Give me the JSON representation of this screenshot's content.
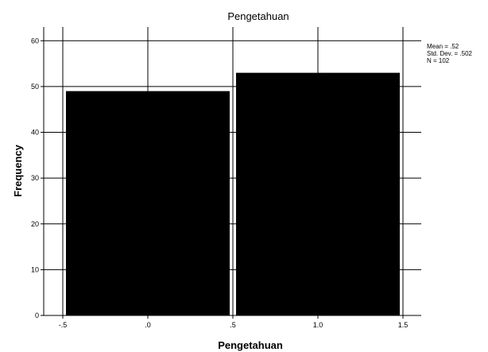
{
  "chart_data": {
    "type": "bar",
    "title": "Pengetahuan",
    "xlabel": "Pengetahuan",
    "ylabel": "Frequency",
    "bins": [
      {
        "from": -0.5,
        "to": 0.5,
        "value": 49
      },
      {
        "from": 0.5,
        "to": 1.5,
        "value": 53
      }
    ],
    "x_ticks": [
      -0.5,
      0.0,
      0.5,
      1.0,
      1.5
    ],
    "x_tick_labels": [
      "-.5",
      ".0",
      ".5",
      "1.0",
      "1.5"
    ],
    "y_ticks": [
      0,
      10,
      20,
      30,
      40,
      50,
      60
    ],
    "y_tick_labels": [
      "0",
      "10",
      "20",
      "30",
      "40",
      "50",
      "60"
    ],
    "xlim": [
      -0.5,
      1.5
    ],
    "ylim": [
      0,
      63
    ],
    "grid": true,
    "stats": {
      "mean": "Mean = .52",
      "std_dev": "Std. Dev. = .502",
      "n": "N = 102"
    },
    "bar_color": "#000000"
  }
}
